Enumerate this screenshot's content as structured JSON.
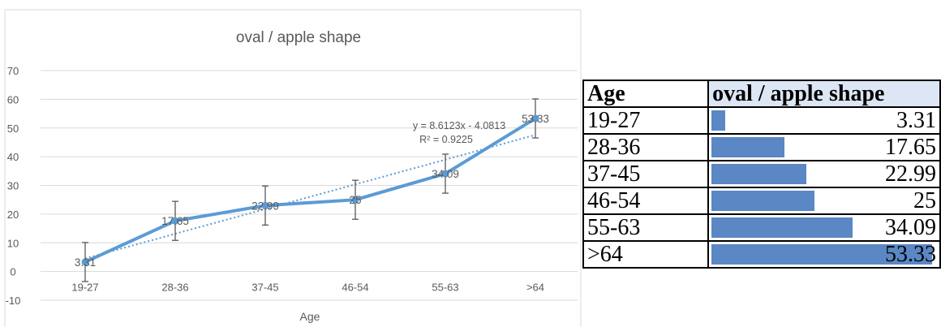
{
  "chart_data": {
    "type": "line",
    "title": "oval / apple shape",
    "xlabel": "Age",
    "ylabel": "",
    "categories": [
      "19-27",
      "28-36",
      "37-45",
      "46-54",
      "55-63",
      ">64"
    ],
    "series": [
      {
        "name": "",
        "values": [
          3.31,
          17.65,
          22.99,
          25,
          34.09,
          53.33
        ],
        "data_labels": [
          "3.31",
          "17.65",
          "22.99",
          "25",
          "34.09",
          "53.33"
        ],
        "error_bar": 6.8,
        "color": "#5b9bd5"
      }
    ],
    "trendline": {
      "type": "linear",
      "slope": 8.6123,
      "intercept": -4.0813,
      "equation": "y = 8.6123x - 4.0813",
      "r_squared": "R² = 0.9225"
    },
    "yticks": [
      "70",
      "60",
      "50",
      "40",
      "30",
      "20",
      "10",
      "0",
      "-10"
    ],
    "ylim": [
      -10,
      70
    ],
    "grid": true,
    "legend": "none"
  },
  "table": {
    "headers": {
      "age": "Age",
      "value": "oval / apple shape"
    },
    "rows": [
      {
        "age": "19-27",
        "value": "3.31",
        "num": 3.31
      },
      {
        "age": "28-36",
        "value": "17.65",
        "num": 17.65
      },
      {
        "age": "37-45",
        "value": "22.99",
        "num": 22.99
      },
      {
        "age": "46-54",
        "value": "25",
        "num": 25
      },
      {
        "age": "55-63",
        "value": "34.09",
        "num": 34.09
      },
      {
        "age": ">64",
        "value": "53.33",
        "num": 53.33
      }
    ],
    "bar_color": "#5b87c4",
    "header_fill": "#dde6f4"
  }
}
